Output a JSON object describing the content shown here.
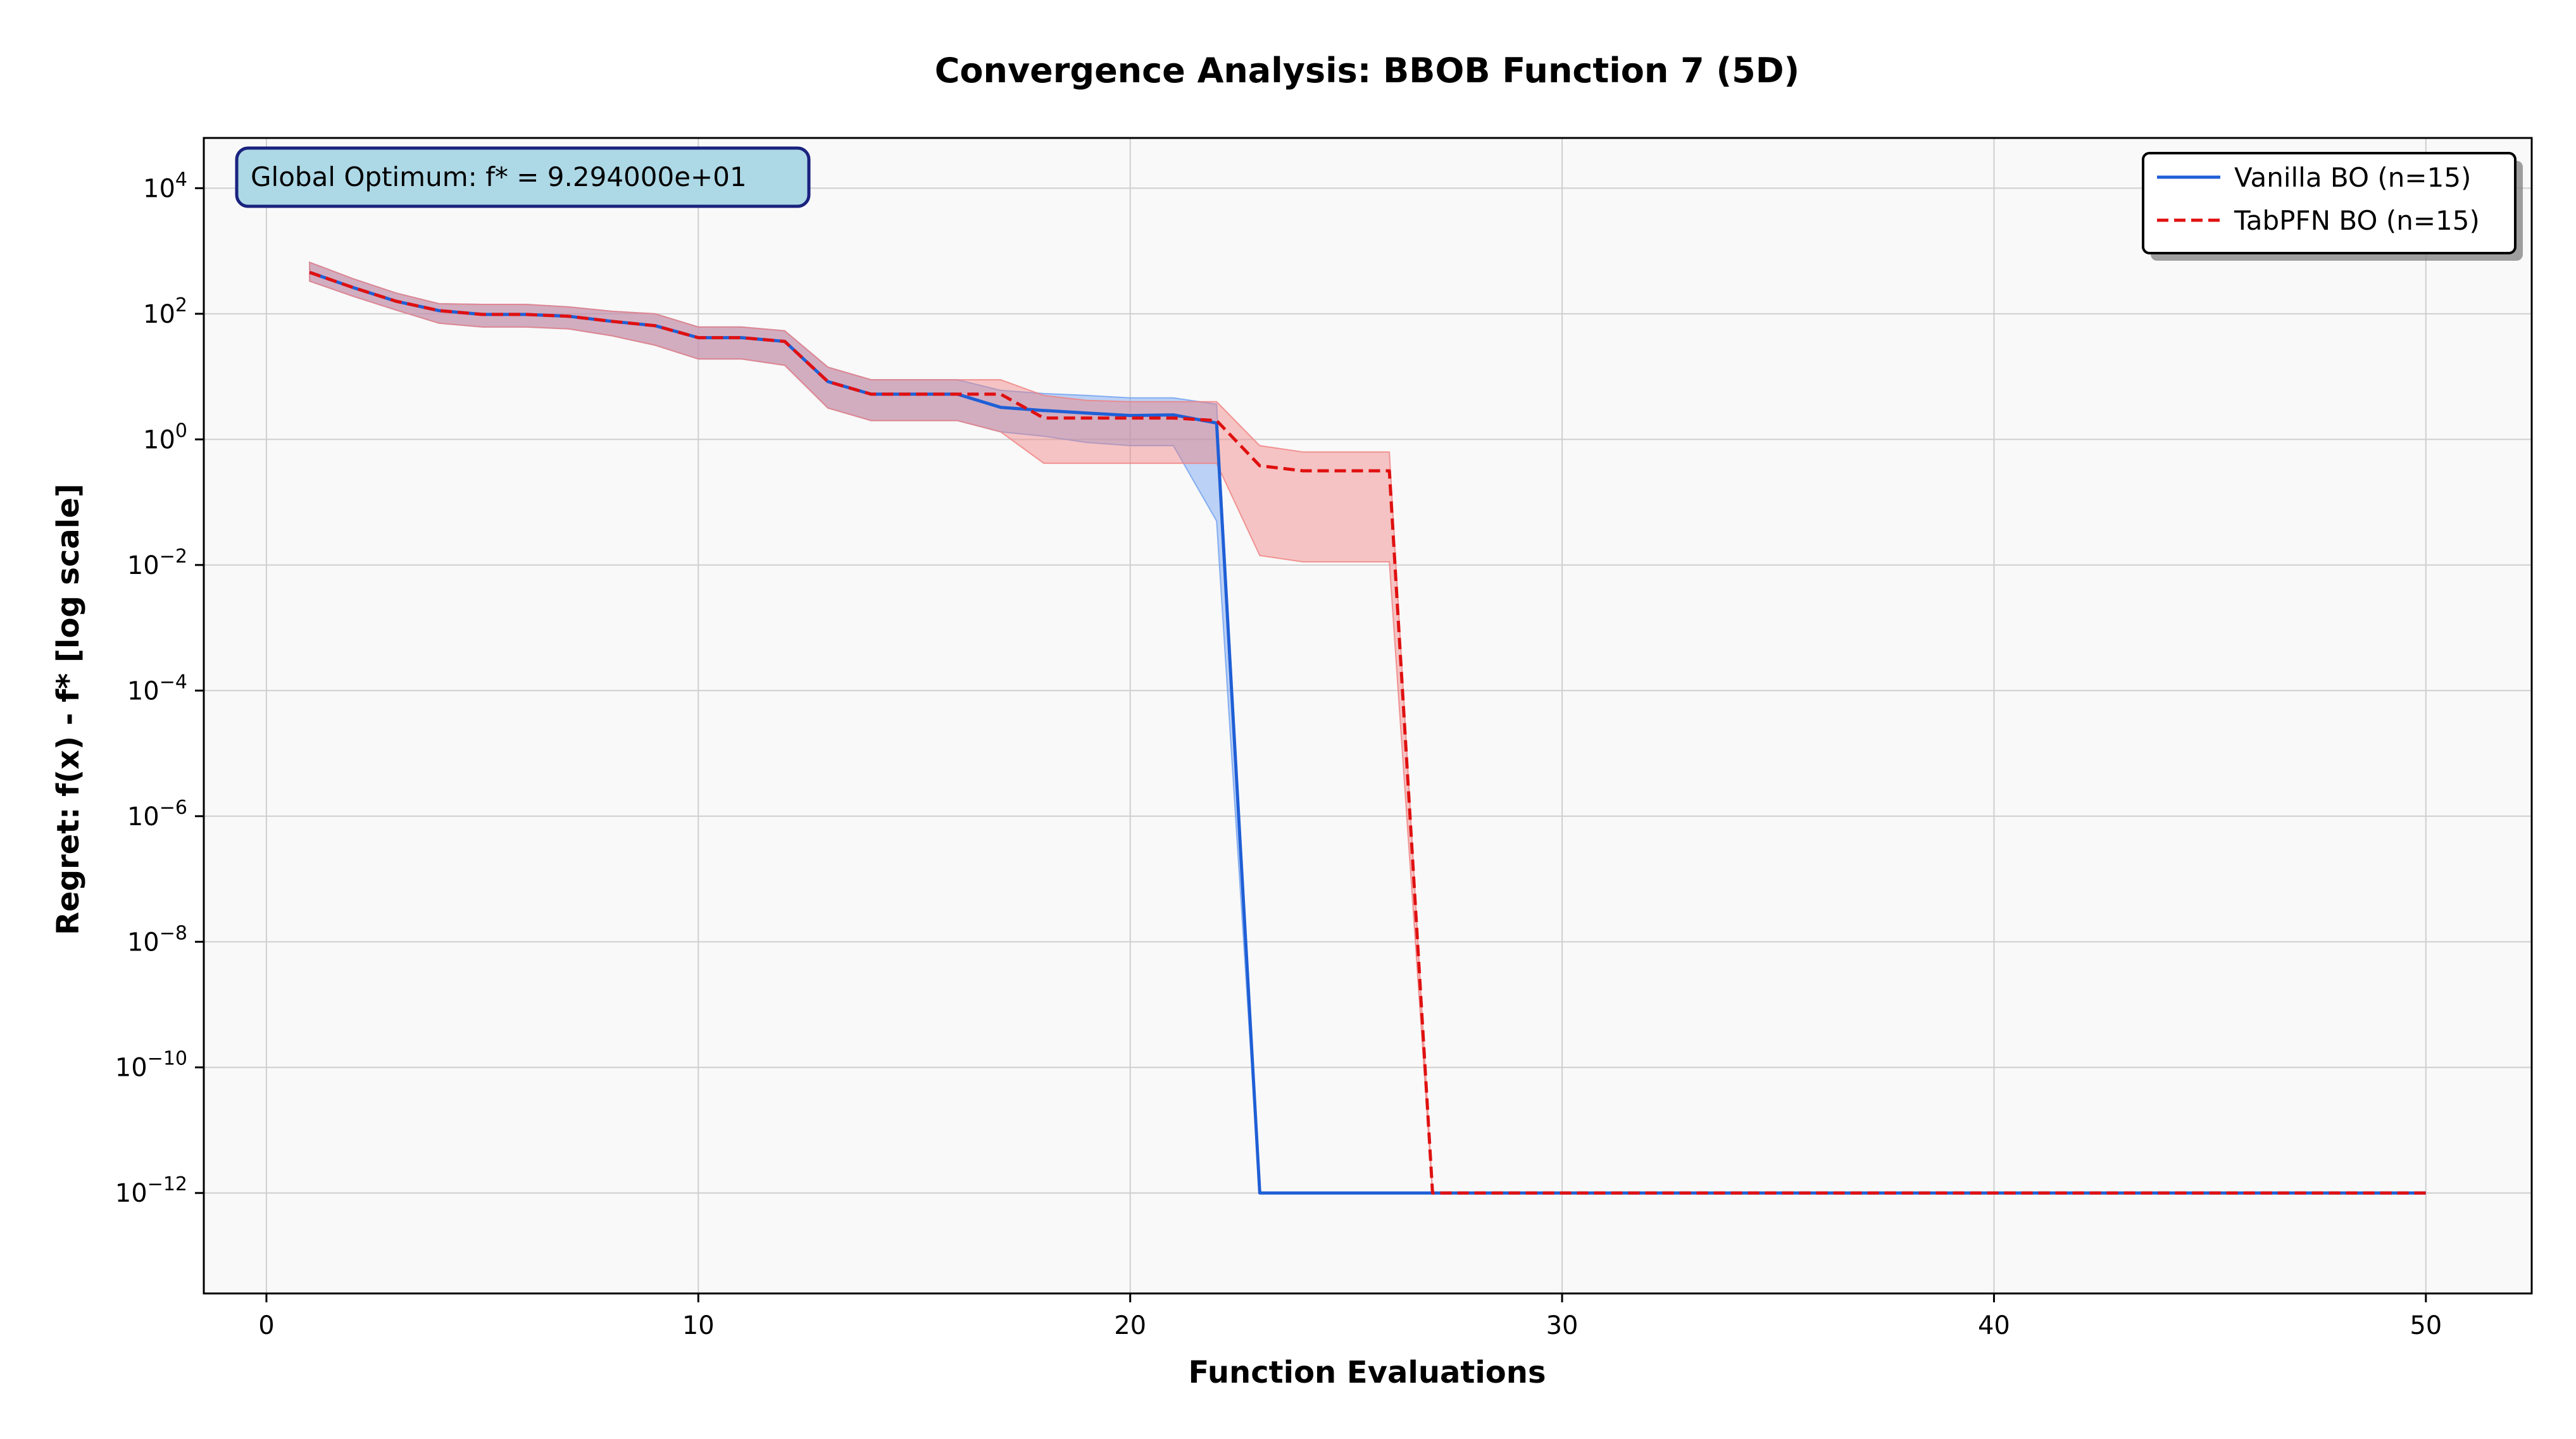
{
  "chart_data": {
    "type": "line",
    "title": "Convergence Analysis: BBOB Function 7 (5D)",
    "xlabel": "Function Evaluations",
    "ylabel": "Regret: f(x) - f* [log scale]",
    "y_scale": "log",
    "xlim": [
      -1.45,
      52.45
    ],
    "ylim_log10": [
      -13.6,
      4.8
    ],
    "x_ticks": [
      0,
      10,
      20,
      30,
      40,
      50
    ],
    "y_ticks_exponents": [
      4,
      2,
      0,
      -2,
      -4,
      -6,
      -8,
      -10,
      -12
    ],
    "y_tick_base": "10",
    "grid": true,
    "legend_position": "top-right",
    "annotation": "Global Optimum: f* = 9.294000e+01",
    "series": [
      {
        "name": "Vanilla BO (n=15)",
        "color": "#1f5fd6",
        "fill_color": "#6fa0f0",
        "line_style": "solid",
        "x": [
          1,
          2,
          3,
          4,
          5,
          6,
          7,
          8,
          9,
          10,
          11,
          12,
          13,
          14,
          15,
          16,
          17,
          18,
          19,
          20,
          21,
          22,
          23,
          24,
          25,
          26,
          27,
          28,
          29,
          30,
          31,
          32,
          33,
          34,
          35,
          36,
          37,
          38,
          39,
          40,
          41,
          42,
          43,
          44,
          45,
          46,
          47,
          48,
          49,
          50
        ],
        "y_log10": [
          2.66,
          2.42,
          2.2,
          2.05,
          1.99,
          1.99,
          1.96,
          1.88,
          1.81,
          1.62,
          1.62,
          1.56,
          0.92,
          0.72,
          0.72,
          0.72,
          0.51,
          0.46,
          0.42,
          0.38,
          0.39,
          0.26,
          -12,
          -12,
          -12,
          -12,
          -12,
          -12,
          -12,
          -12,
          -12,
          -12,
          -12,
          -12,
          -12,
          -12,
          -12,
          -12,
          -12,
          -12,
          -12,
          -12,
          -12,
          -12,
          -12,
          -12,
          -12,
          -12,
          -12,
          -12
        ],
        "band_upper_log10": [
          2.82,
          2.56,
          2.33,
          2.16,
          2.15,
          2.15,
          2.11,
          2.04,
          2.0,
          1.79,
          1.79,
          1.73,
          1.15,
          0.95,
          0.95,
          0.95,
          0.78,
          0.73,
          0.7,
          0.66,
          0.66,
          0.56,
          -12,
          -12,
          -12,
          -12,
          -12,
          -12,
          -12,
          -12,
          -12,
          -12,
          -12,
          -12,
          -12,
          -12,
          -12,
          -12,
          -12,
          -12,
          -12,
          -12,
          -12,
          -12,
          -12,
          -12,
          -12,
          -12,
          -12,
          -12
        ],
        "band_lower_log10": [
          2.52,
          2.28,
          2.06,
          1.85,
          1.79,
          1.79,
          1.76,
          1.65,
          1.5,
          1.28,
          1.28,
          1.18,
          0.5,
          0.3,
          0.3,
          0.3,
          0.12,
          0.05,
          -0.05,
          -0.1,
          -0.1,
          -1.3,
          -12,
          -12,
          -12,
          -12,
          -12,
          -12,
          -12,
          -12,
          -12,
          -12,
          -12,
          -12,
          -12,
          -12,
          -12,
          -12,
          -12,
          -12,
          -12,
          -12,
          -12,
          -12,
          -12,
          -12,
          -12,
          -12,
          -12,
          -12
        ]
      },
      {
        "name": "TabPFN BO (n=15)",
        "color": "#e01010",
        "fill_color": "#f08080",
        "line_style": "dashed",
        "x": [
          1,
          2,
          3,
          4,
          5,
          6,
          7,
          8,
          9,
          10,
          11,
          12,
          13,
          14,
          15,
          16,
          17,
          18,
          19,
          20,
          21,
          22,
          23,
          24,
          25,
          26,
          27,
          28,
          29,
          30,
          31,
          32,
          33,
          34,
          35,
          36,
          37,
          38,
          39,
          40,
          41,
          42,
          43,
          44,
          45,
          46,
          47,
          48,
          49,
          50
        ],
        "y_log10": [
          2.66,
          2.42,
          2.2,
          2.05,
          1.99,
          1.99,
          1.96,
          1.88,
          1.81,
          1.62,
          1.62,
          1.56,
          0.92,
          0.72,
          0.72,
          0.72,
          0.72,
          0.34,
          0.34,
          0.34,
          0.34,
          0.3,
          -0.42,
          -0.5,
          -0.5,
          -0.5,
          -12,
          -12,
          -12,
          -12,
          -12,
          -12,
          -12,
          -12,
          -12,
          -12,
          -12,
          -12,
          -12,
          -12,
          -12,
          -12,
          -12,
          -12,
          -12,
          -12,
          -12,
          -12,
          -12,
          -12
        ],
        "band_upper_log10": [
          2.82,
          2.56,
          2.33,
          2.16,
          2.15,
          2.15,
          2.11,
          2.04,
          2.0,
          1.79,
          1.79,
          1.73,
          1.15,
          0.95,
          0.95,
          0.95,
          0.95,
          0.7,
          0.62,
          0.6,
          0.6,
          0.6,
          -0.1,
          -0.2,
          -0.2,
          -0.2,
          -12,
          -12,
          -12,
          -12,
          -12,
          -12,
          -12,
          -12,
          -12,
          -12,
          -12,
          -12,
          -12,
          -12,
          -12,
          -12,
          -12,
          -12,
          -12,
          -12,
          -12,
          -12,
          -12,
          -12
        ],
        "band_lower_log10": [
          2.52,
          2.28,
          2.06,
          1.85,
          1.79,
          1.79,
          1.76,
          1.65,
          1.5,
          1.28,
          1.28,
          1.18,
          0.5,
          0.3,
          0.3,
          0.3,
          0.12,
          -0.38,
          -0.38,
          -0.38,
          -0.38,
          -0.38,
          -1.85,
          -1.95,
          -1.95,
          -1.95,
          -12,
          -12,
          -12,
          -12,
          -12,
          -12,
          -12,
          -12,
          -12,
          -12,
          -12,
          -12,
          -12,
          -12,
          -12,
          -12,
          -12,
          -12,
          -12,
          -12,
          -12,
          -12,
          -12,
          -12
        ]
      }
    ]
  }
}
